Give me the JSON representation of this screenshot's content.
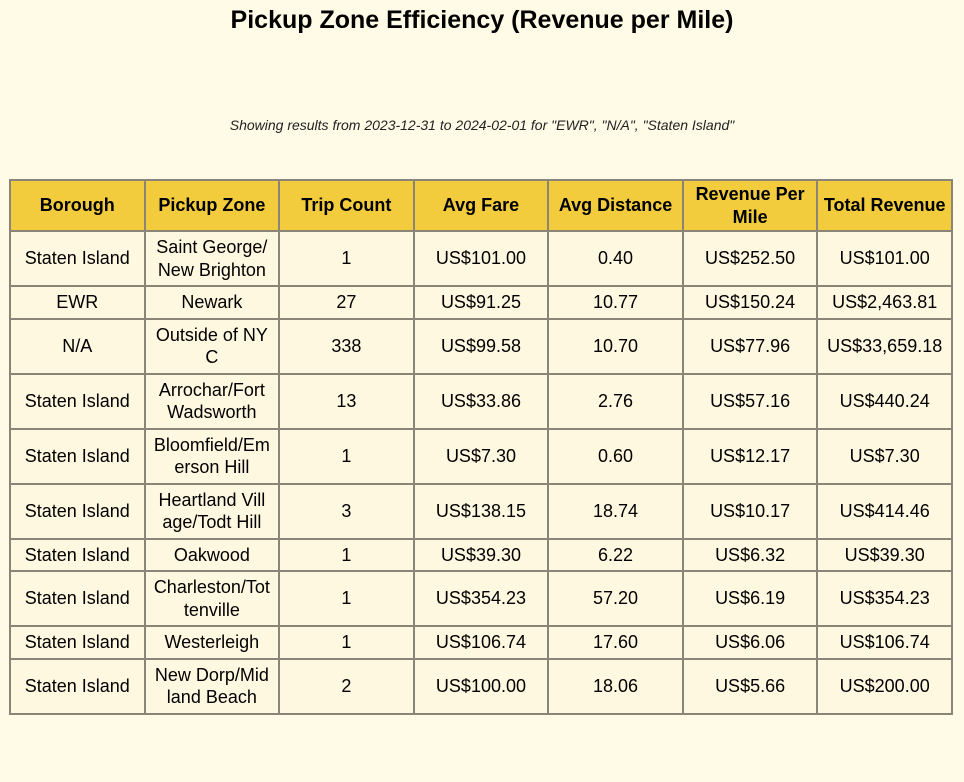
{
  "title": "Pickup Zone Efficiency (Revenue per Mile)",
  "subtitle": "Showing results from 2023-12-31 to 2024-02-01 for \"EWR\", \"N/A\", \"Staten Island\"",
  "columns": [
    "Borough",
    "Pickup Zone",
    "Trip Count",
    "Avg Fare",
    "Avg Distance",
    "Revenue Per Mile",
    "Total Revenue"
  ],
  "rows": [
    [
      "Staten Island",
      "Saint George/New Brighton",
      "1",
      "US$101.00",
      "0.40",
      "US$252.50",
      "US$101.00"
    ],
    [
      "EWR",
      "Newark",
      "27",
      "US$91.25",
      "10.77",
      "US$150.24",
      "US$2,463.81"
    ],
    [
      "N/A",
      "Outside of NYC",
      "338",
      "US$99.58",
      "10.70",
      "US$77.96",
      "US$33,659.18"
    ],
    [
      "Staten Island",
      "Arrochar/Fort Wadsworth",
      "13",
      "US$33.86",
      "2.76",
      "US$57.16",
      "US$440.24"
    ],
    [
      "Staten Island",
      "Bloomfield/Emerson Hill",
      "1",
      "US$7.30",
      "0.60",
      "US$12.17",
      "US$7.30"
    ],
    [
      "Staten Island",
      "Heartland Village/Todt Hill",
      "3",
      "US$138.15",
      "18.74",
      "US$10.17",
      "US$414.46"
    ],
    [
      "Staten Island",
      "Oakwood",
      "1",
      "US$39.30",
      "6.22",
      "US$6.32",
      "US$39.30"
    ],
    [
      "Staten Island",
      "Charleston/Tottenville",
      "1",
      "US$354.23",
      "57.20",
      "US$6.19",
      "US$354.23"
    ],
    [
      "Staten Island",
      "Westerleigh",
      "1",
      "US$106.74",
      "17.60",
      "US$6.06",
      "US$106.74"
    ],
    [
      "Staten Island",
      "New Dorp/Midland Beach",
      "2",
      "US$100.00",
      "18.06",
      "US$5.66",
      "US$200.00"
    ]
  ]
}
